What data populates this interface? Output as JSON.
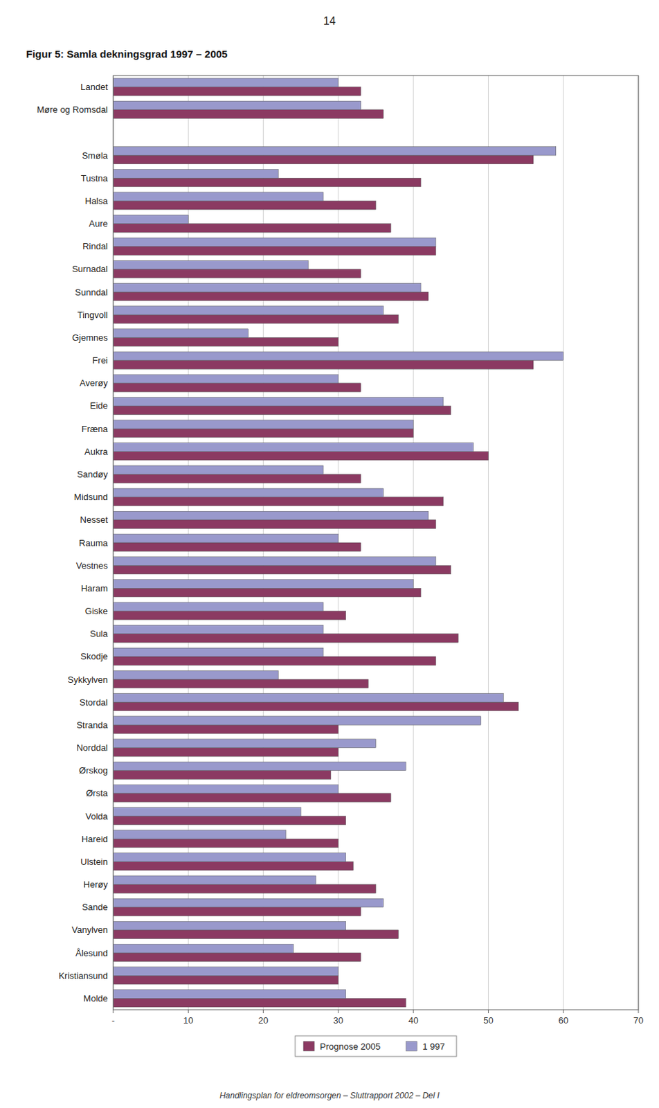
{
  "chart_data": {
    "type": "bar",
    "orientation": "horizontal",
    "title": "Figur 5: Samla dekningsgrad 1997 – 2005",
    "annotations": [
      "14",
      "Handlingsplan for eldreomsorgen – Sluttrapport 2002 – Del I"
    ],
    "categories": [
      "Landet",
      "Møre og Romsdal",
      null,
      "Smøla",
      "Tustna",
      "Halsa",
      "Aure",
      "Rindal",
      "Surnadal",
      "Sunndal",
      "Tingvoll",
      "Gjemnes",
      "Frei",
      "Averøy",
      "Eide",
      "Fræna",
      "Aukra",
      "Sandøy",
      "Midsund",
      "Nesset",
      "Rauma",
      "Vestnes",
      "Haram",
      "Giske",
      "Sula",
      "Skodje",
      "Sykkylven",
      "Stordal",
      "Stranda",
      "Norddal",
      "Ørskog",
      "Ørsta",
      "Volda",
      "Hareid",
      "Ulstein",
      "Herøy",
      "Sande",
      "Vanylven",
      "Ålesund",
      "Kristiansund",
      "Molde"
    ],
    "series": [
      {
        "name": "Prognose 2005",
        "color": "#8B3A62",
        "values": [
          33,
          36,
          null,
          56,
          41,
          35,
          37,
          43,
          33,
          42,
          38,
          30,
          56,
          33,
          45,
          40,
          50,
          33,
          44,
          43,
          33,
          45,
          41,
          31,
          46,
          43,
          34,
          54,
          30,
          30,
          29,
          37,
          31,
          30,
          32,
          35,
          33,
          38,
          33,
          30,
          39
        ]
      },
      {
        "name": "1 997",
        "color": "#9999CC",
        "values": [
          30,
          33,
          null,
          59,
          22,
          28,
          10,
          43,
          26,
          41,
          36,
          18,
          60,
          30,
          44,
          40,
          48,
          28,
          36,
          42,
          30,
          43,
          40,
          28,
          28,
          28,
          22,
          52,
          49,
          35,
          39,
          30,
          25,
          23,
          31,
          27,
          36,
          31,
          24,
          30,
          31
        ]
      }
    ],
    "xlim": [
      0,
      70
    ],
    "xticks": [
      {
        "value": 0,
        "label": "-"
      },
      10,
      20,
      30,
      40,
      50,
      60,
      70
    ],
    "grid": true,
    "legend": "bottom"
  }
}
